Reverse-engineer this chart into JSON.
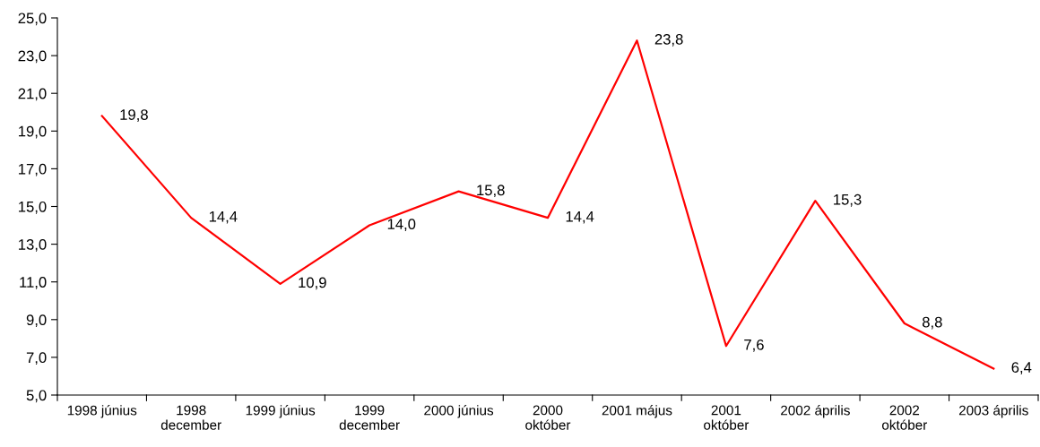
{
  "chart_data": {
    "type": "line",
    "categories": [
      "1998 június",
      "1998\ndecember",
      "1999 június",
      "1999\ndecember",
      "2000 június",
      "2000\noktóber",
      "2001 május",
      "2001\noktóber",
      "2002 április",
      "2002\noktóber",
      "2003 április"
    ],
    "series": [
      {
        "color": "#ff0000",
        "values": [
          19.8,
          14.4,
          10.9,
          14.0,
          15.8,
          14.4,
          23.8,
          7.6,
          15.3,
          8.8,
          6.4
        ],
        "value_labels": [
          "19,8",
          "14,4",
          "10,9",
          "14,0",
          "15,8",
          "14,4",
          "23,8",
          "7,6",
          "15,3",
          "8,8",
          "6,4"
        ]
      }
    ],
    "ylim": [
      5,
      25
    ],
    "yticks": [
      {
        "value": 5,
        "label": "5,0"
      },
      {
        "value": 7,
        "label": "7,0"
      },
      {
        "value": 9,
        "label": "9,0"
      },
      {
        "value": 11,
        "label": "11,0"
      },
      {
        "value": 13,
        "label": "13,0"
      },
      {
        "value": 15,
        "label": "15,0"
      },
      {
        "value": 17,
        "label": "17,0"
      },
      {
        "value": 19,
        "label": "19,0"
      },
      {
        "value": 21,
        "label": "21,0"
      },
      {
        "value": 23,
        "label": "23,0"
      },
      {
        "value": 25,
        "label": "25,0"
      }
    ],
    "grid": false,
    "marker": "none",
    "line_style": "solid"
  }
}
